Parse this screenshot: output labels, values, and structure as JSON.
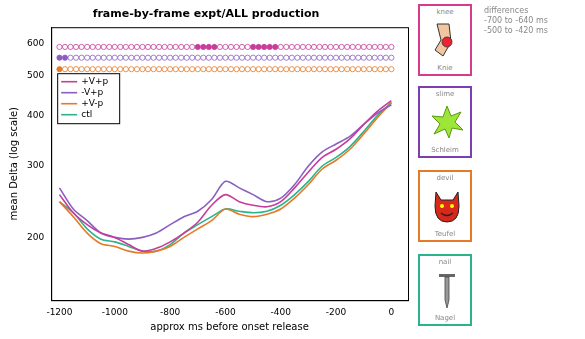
{
  "chart_data": {
    "type": "line",
    "title": "frame-by-frame expt/ALL production",
    "x_label": "approx ms before onset release",
    "y_label": "mean Delta (log scale)",
    "x": [
      -1200,
      -1150,
      -1100,
      -1050,
      -1000,
      -950,
      -900,
      -850,
      -800,
      -750,
      -700,
      -650,
      -600,
      -550,
      -500,
      -450,
      -400,
      -350,
      -300,
      -250,
      -200,
      -150,
      -100,
      -50,
      0
    ],
    "series": [
      {
        "name": "+V+p",
        "color": "#c83c9c",
        "values": [
          255,
          230,
          215,
          205,
          200,
          192,
          185,
          188,
          195,
          205,
          218,
          240,
          255,
          245,
          240,
          238,
          245,
          265,
          290,
          315,
          330,
          350,
          380,
          410,
          435
        ]
      },
      {
        "name": "-V+p",
        "color": "#8a5fc0",
        "values": [
          265,
          235,
          220,
          205,
          200,
          198,
          200,
          205,
          215,
          225,
          232,
          248,
          275,
          265,
          255,
          245,
          250,
          270,
          300,
          325,
          340,
          355,
          380,
          405,
          425
        ]
      },
      {
        "name": "+V-p",
        "color": "#e57a28",
        "values": [
          245,
          225,
          205,
          193,
          190,
          185,
          183,
          185,
          190,
          200,
          210,
          220,
          235,
          228,
          225,
          228,
          235,
          250,
          270,
          295,
          310,
          330,
          360,
          395,
          430
        ]
      },
      {
        "name": "ctl",
        "color": "#2db38c",
        "values": [
          245,
          230,
          210,
          198,
          195,
          190,
          185,
          185,
          192,
          205,
          215,
          225,
          235,
          232,
          230,
          232,
          240,
          255,
          275,
          300,
          315,
          335,
          365,
          400,
          430
        ]
      }
    ],
    "xlim": [
      -1230,
      60
    ],
    "ylim": [
      140,
      660
    ],
    "xticks": [
      -1200,
      -1000,
      -800,
      -600,
      -400,
      -200,
      0
    ],
    "yticks": [
      200,
      300,
      400,
      500,
      600
    ],
    "log": "y",
    "grid": false,
    "legend": "top-left",
    "significance": {
      "frame_step": 20,
      "rows": [
        {
          "color": "#c83c9c",
          "y": 590,
          "filled": [
            [
              -700,
              -640
            ],
            [
              -500,
              -420
            ]
          ]
        },
        {
          "color": "#8a5fc0",
          "y": 555,
          "filled": [
            [
              -1200,
              -1180
            ]
          ]
        },
        {
          "color": "#e57a28",
          "y": 520,
          "filled": [
            [
              -1200,
              -1200
            ]
          ]
        }
      ]
    }
  },
  "stimuli": [
    {
      "english": "knee",
      "german": "Knie",
      "color": "#d63c8c"
    },
    {
      "english": "slime",
      "german": "Schleim",
      "color": "#7d3fb0"
    },
    {
      "english": "devil",
      "german": "Teufel",
      "color": "#e57a28"
    },
    {
      "english": "nail",
      "german": "Nagel",
      "color": "#2db38c"
    }
  ],
  "annotation": [
    "differences",
    "-700 to -640 ms",
    "-500 to -420 ms"
  ]
}
